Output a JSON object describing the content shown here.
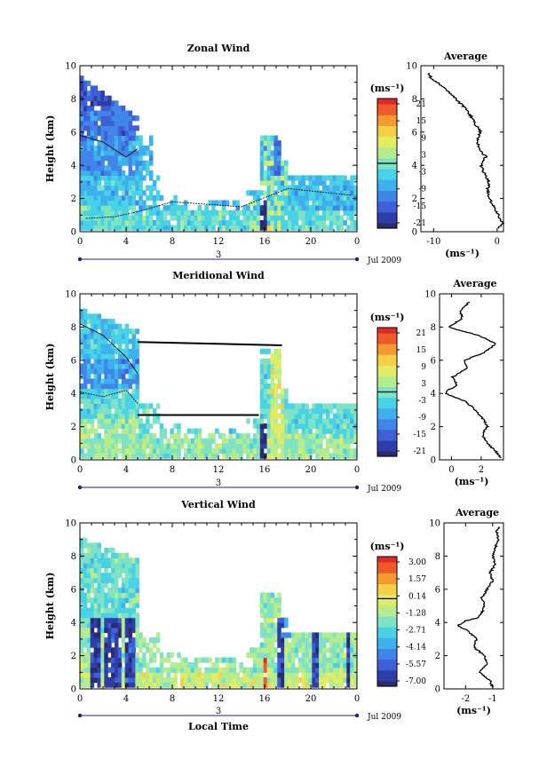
{
  "colorscale": [
    "#2b2a6e",
    "#2e3ea8",
    "#3f5fd8",
    "#3f86e8",
    "#3fb0ee",
    "#48d2e6",
    "#7fe3c3",
    "#b4ec8e",
    "#e1ec63",
    "#f6cf46",
    "#f59a32",
    "#ef5a2b",
    "#de2a28"
  ],
  "chart_data": [
    {
      "type": "heatmap",
      "title": "Zonal Wind",
      "ylabel": "Height (km)",
      "ylim": [
        0,
        10
      ],
      "xlim": [
        0,
        24
      ],
      "x_ticks": [
        "0",
        "4",
        "8",
        "12",
        "16",
        "20",
        "0"
      ],
      "y_ticks": [
        "0",
        "2",
        "4",
        "6",
        "8",
        "10"
      ],
      "date_label": "3",
      "date_suffix": "Jul 2009",
      "colorbar": {
        "unit": "(ms⁻¹)",
        "ticks": [
          "21",
          "15",
          "9",
          "3",
          "-3",
          "-9",
          "-15",
          "-21"
        ],
        "range": [
          -24,
          24
        ]
      },
      "average": {
        "title": "Average",
        "xlabel": "(ms⁻¹)",
        "x_ticks": [
          "-10",
          "0"
        ],
        "xlim": [
          -12,
          1
        ],
        "height": [
          0.2,
          0.5,
          1,
          1.5,
          2,
          2.5,
          3,
          3.5,
          4,
          4.5,
          5,
          5.5,
          6,
          6.5,
          7,
          7.5,
          8,
          8.5,
          9,
          9.3,
          9.6
        ],
        "value": [
          0.3,
          0.8,
          0.2,
          -0.5,
          -1.2,
          -1.5,
          -1.3,
          -2,
          -2.5,
          -1.8,
          -2.8,
          -3.2,
          -2.6,
          -3.5,
          -4.2,
          -5.2,
          -6.5,
          -7.8,
          -9.5,
          -10.5,
          -10.8
        ]
      }
    },
    {
      "type": "heatmap",
      "title": "Meridional Wind",
      "ylabel": "Height (km)",
      "ylim": [
        0,
        10
      ],
      "xlim": [
        0,
        24
      ],
      "x_ticks": [
        "0",
        "4",
        "8",
        "12",
        "16",
        "20",
        "0"
      ],
      "y_ticks": [
        "0",
        "2",
        "4",
        "6",
        "8",
        "10"
      ],
      "date_label": "3",
      "date_suffix": "Jul 2009",
      "colorbar": {
        "unit": "(ms⁻¹)",
        "ticks": [
          "21",
          "15",
          "9",
          "3",
          "-3",
          "-9",
          "-15",
          "-21"
        ],
        "range": [
          -24,
          24
        ]
      },
      "average": {
        "title": "Average",
        "xlabel": "(ms⁻¹)",
        "x_ticks": [
          "0",
          "2"
        ],
        "xlim": [
          -0.8,
          3.5
        ],
        "height": [
          0.1,
          0.5,
          1,
          1.5,
          2,
          2.5,
          3,
          3.5,
          4,
          4.2,
          4.5,
          5,
          5.5,
          6,
          6.5,
          7,
          7.5,
          8,
          8.5,
          9,
          9.5
        ],
        "value": [
          3.3,
          3,
          2.4,
          2.1,
          2.4,
          2.1,
          1.6,
          1.0,
          -0.4,
          -0.2,
          0.4,
          0.1,
          1.0,
          0.9,
          2.3,
          3.0,
          1.8,
          -0.2,
          0.7,
          0.6,
          1.2
        ]
      }
    },
    {
      "type": "heatmap",
      "title": "Vertical Wind",
      "ylabel": "Height (km)",
      "xlabel": "Local Time",
      "ylim": [
        0,
        10
      ],
      "xlim": [
        0,
        24
      ],
      "x_ticks": [
        "0",
        "4",
        "8",
        "12",
        "16",
        "20",
        "0"
      ],
      "y_ticks": [
        "0",
        "2",
        "4",
        "6",
        "8",
        "10"
      ],
      "date_label": "3",
      "date_suffix": "Jul 2009",
      "colorbar": {
        "unit": "(ms⁻¹)",
        "ticks": [
          "3.00",
          "1.57",
          "0.14",
          "-1.28",
          "-2.71",
          "-4.14",
          "-5.57",
          "-7.00"
        ],
        "range": [
          -7.7,
          3.7
        ]
      },
      "average": {
        "title": "Average",
        "xlabel": "(ms⁻¹)",
        "x_ticks": [
          "-2",
          "-1"
        ],
        "xlim": [
          -2.8,
          -0.6
        ],
        "height": [
          0.1,
          0.5,
          1,
          1.5,
          2,
          2.5,
          3,
          3.5,
          3.8,
          4.1,
          4.3,
          4.6,
          5,
          5.5,
          6,
          6.5,
          7,
          7.5,
          8,
          8.5,
          9,
          9.5,
          9.8
        ],
        "value": [
          -1.0,
          -1.1,
          -1.5,
          -1.2,
          -1.3,
          -1.7,
          -1.6,
          -1.9,
          -2.3,
          -2.0,
          -1.5,
          -1.4,
          -1.3,
          -1.4,
          -1.2,
          -1.0,
          -1.1,
          -0.9,
          -1.0,
          -0.9,
          -0.8,
          -0.85,
          -0.7
        ]
      }
    }
  ]
}
